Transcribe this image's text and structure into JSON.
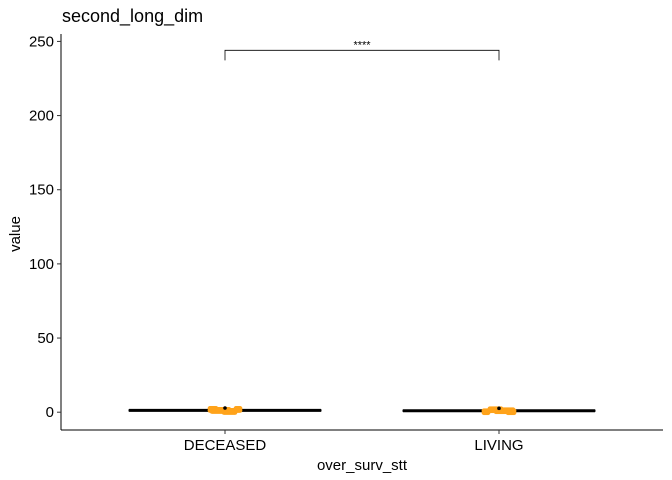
{
  "chart_data": {
    "type": "box",
    "title": "second_long_dim",
    "xlabel": "over_surv_stt",
    "ylabel": "value",
    "categories": [
      "DECEASED",
      "LIVING"
    ],
    "ylim": [
      -12,
      255
    ],
    "yticks": [
      0,
      50,
      100,
      150,
      200,
      250
    ],
    "ytick_labels": [
      "0",
      "50",
      "100",
      "150",
      "200",
      "250"
    ],
    "grid": false,
    "series": [
      {
        "values": [
          {
            "category": "DECEASED",
            "median": 1.2,
            "q1": 0.8,
            "q3": 1.6,
            "whisker_low": 0.3,
            "whisker_high": 2.2,
            "outliers": [
              2.8
            ]
          },
          {
            "category": "LIVING",
            "median": 1.0,
            "q1": 0.6,
            "q3": 1.4,
            "whisker_low": 0.2,
            "whisker_high": 2.0,
            "outliers": [
              2.6
            ]
          }
        ]
      }
    ],
    "points_color": "#FFA31A",
    "box_color": "#000000",
    "significance": {
      "from": "DECEASED",
      "to": "LIVING",
      "label": "****",
      "y": 244
    }
  }
}
